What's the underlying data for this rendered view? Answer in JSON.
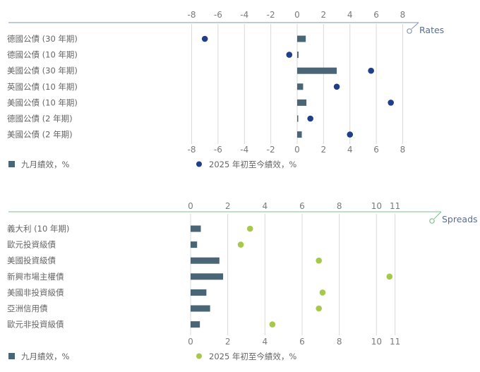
{
  "chart_data": [
    {
      "type": "bar",
      "name": "Rates",
      "tag": "Rates",
      "categories": [
        "德國公債 (30 年期)",
        "德國公債 (10 年期)",
        "美國公債 (30 年期)",
        "英國公債 (10 年期)",
        "美國公債 (10 年期)",
        "德國公債 (2 年期)",
        "美國公債 (2 年期)"
      ],
      "series": [
        {
          "name": "九月績效，%",
          "kind": "bar",
          "values": [
            0.65,
            0.1,
            3.0,
            0.45,
            0.7,
            0.05,
            0.35
          ]
        },
        {
          "name": "2025 年初至今績效，%",
          "kind": "dot",
          "values": [
            -7.0,
            -0.6,
            5.6,
            3.0,
            7.1,
            1.0,
            4.0
          ]
        }
      ],
      "xticks": [
        -8,
        -6,
        -4,
        -2,
        0,
        2,
        4,
        6,
        8
      ],
      "xlim": [
        -8,
        8
      ],
      "grid": true,
      "accent": "#8294b8",
      "bar_color": "#4a6676",
      "dot_color": "#1f3f8a"
    },
    {
      "type": "bar",
      "name": "Spreads",
      "tag": "Spreads",
      "categories": [
        "義大利 (10 年期)",
        "歐元投資級債",
        "美國投資級債",
        "新興市場主權債",
        "美國非投資級債",
        "亞洲信用債",
        "歐元非投資級債"
      ],
      "series": [
        {
          "name": "九月績效，%",
          "kind": "bar",
          "values": [
            0.55,
            0.35,
            1.55,
            1.75,
            0.85,
            1.05,
            0.5
          ]
        },
        {
          "name": "2025 年初至今績效，%",
          "kind": "dot",
          "values": [
            3.2,
            2.7,
            6.9,
            10.7,
            7.1,
            6.9,
            4.4
          ]
        }
      ],
      "xticks": [
        0,
        2,
        4,
        6,
        8,
        10,
        11
      ],
      "xlim": [
        0,
        12
      ],
      "grid": true,
      "accent": "#7fc08a",
      "bar_color": "#4a6676",
      "dot_color": "#a6c94a"
    }
  ],
  "legend": {
    "bar_label": "九月績效，%",
    "dot_label": "2025 年初至今績效，%"
  }
}
